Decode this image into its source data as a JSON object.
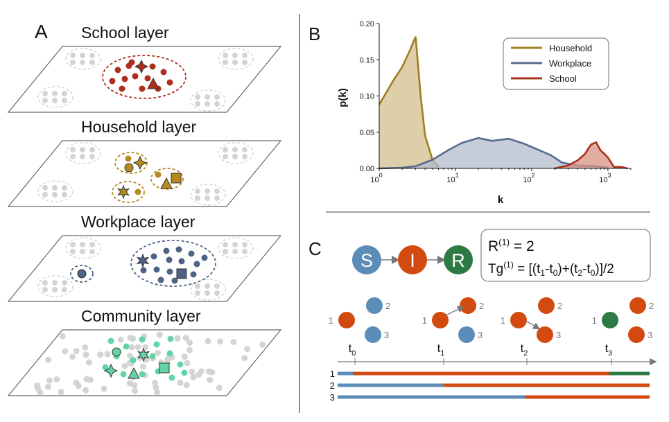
{
  "panels": {
    "a": "A",
    "b": "B",
    "c": "C"
  },
  "layers": [
    {
      "title": "School layer",
      "color": "#ab2e1e"
    },
    {
      "title": "Household layer",
      "color": "#b58a1e"
    },
    {
      "title": "Workplace layer",
      "color": "#4d6284"
    },
    {
      "title": "Community layer",
      "color": "#63d4a4"
    }
  ],
  "colors": {
    "susceptible": "#5b8db8",
    "infected": "#d24a10",
    "recovered": "#2d7a45",
    "neutral_dot": "#d4d4d4"
  },
  "icons": [
    "star-icon",
    "square-icon",
    "triangle-icon",
    "diamond-icon",
    "circle-icon"
  ],
  "chart_data": {
    "type": "area",
    "xlabel": "k",
    "ylabel": "p(k)",
    "xscale": "log",
    "xlim": [
      1,
      2000
    ],
    "ylim": [
      0,
      0.2
    ],
    "yticks": [
      "0.00",
      "0.05",
      "0.10",
      "0.15",
      "0.20"
    ],
    "xticks": [
      {
        "base": "10",
        "exp": "0"
      },
      {
        "base": "10",
        "exp": "1"
      },
      {
        "base": "10",
        "exp": "2"
      },
      {
        "base": "10",
        "exp": "3"
      }
    ],
    "legend_position": "top-right",
    "series": [
      {
        "name": "Household",
        "color": "#a07d1f",
        "fill": "#d3bd8c",
        "x": [
          1,
          1.5,
          2,
          2.5,
          3,
          3.5,
          4,
          5,
          6
        ],
        "y": [
          0.088,
          0.12,
          0.14,
          0.162,
          0.182,
          0.1,
          0.045,
          0.012,
          0.002
        ]
      },
      {
        "name": "Workplace",
        "color": "#556a8c",
        "fill": "#b3bccb",
        "x": [
          1,
          2,
          3,
          5,
          8,
          12,
          20,
          30,
          50,
          80,
          120,
          180,
          250,
          400,
          700,
          1000
        ],
        "y": [
          0.0,
          0.001,
          0.003,
          0.012,
          0.025,
          0.035,
          0.042,
          0.038,
          0.041,
          0.034,
          0.026,
          0.018,
          0.008,
          0.004,
          0.003,
          0.001
        ]
      },
      {
        "name": "School",
        "color": "#a8321b",
        "fill": "#d89386",
        "x": [
          200,
          300,
          400,
          500,
          600,
          700,
          800,
          900,
          1000,
          1200,
          1500,
          1800
        ],
        "y": [
          0.0,
          0.004,
          0.011,
          0.02,
          0.033,
          0.036,
          0.025,
          0.02,
          0.015,
          0.002,
          0.002,
          0.0
        ]
      }
    ]
  },
  "sir": {
    "states": [
      "S",
      "I",
      "R"
    ],
    "r_label": "R",
    "r_sup": "(1)",
    "r_value": "= 2",
    "tg_label": "Tg",
    "tg_sup": "(1)",
    "tg_formula": "= [(t1-t0)+(t2-t0)]/2"
  },
  "timeline": {
    "ticks": [
      "t0",
      "t1",
      "t2",
      "t3"
    ],
    "node_labels": [
      "1",
      "2",
      "3"
    ],
    "rows": [
      {
        "label": "1",
        "segments": [
          {
            "state": "susceptible",
            "from": 0,
            "to": 0.05
          },
          {
            "state": "infected",
            "from": 0.05,
            "to": 0.87
          },
          {
            "state": "recovered",
            "from": 0.87,
            "to": 1
          }
        ]
      },
      {
        "label": "2",
        "segments": [
          {
            "state": "susceptible",
            "from": 0,
            "to": 0.34
          },
          {
            "state": "infected",
            "from": 0.34,
            "to": 1
          }
        ]
      },
      {
        "label": "3",
        "segments": [
          {
            "state": "susceptible",
            "from": 0,
            "to": 0.6
          },
          {
            "state": "infected",
            "from": 0.6,
            "to": 1
          }
        ]
      }
    ]
  }
}
